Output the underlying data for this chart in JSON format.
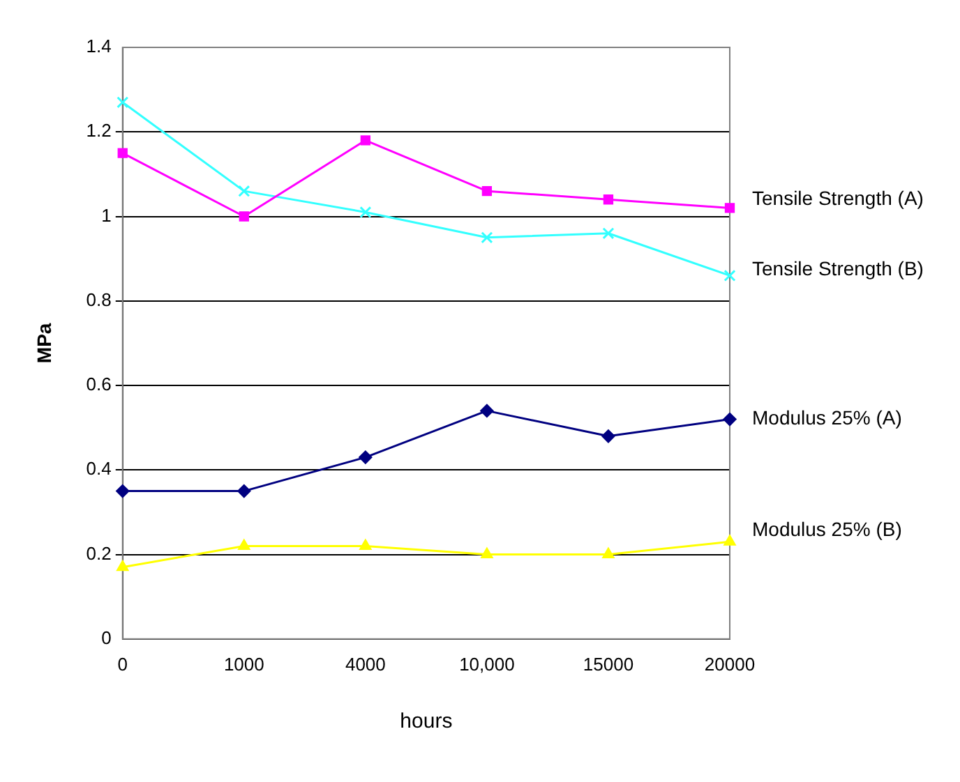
{
  "chart_data": {
    "type": "line",
    "xlabel": "hours",
    "ylabel": "MPa",
    "categories": [
      "0",
      "1000",
      "4000",
      "10,000",
      "15000",
      "20000"
    ],
    "ylim": [
      0,
      1.4
    ],
    "yticks": [
      0,
      0.2,
      0.4,
      0.6,
      0.8,
      1,
      1.2,
      1.4
    ],
    "grid": "y",
    "legend": false,
    "line_style": "solid",
    "series": [
      {
        "name": "Tensile Strength (A)",
        "color": "#ff00ff",
        "marker": "square",
        "values": [
          1.15,
          1.0,
          1.18,
          1.06,
          1.04,
          1.02
        ]
      },
      {
        "name": "Tensile Strength (B)",
        "color": "#33ffff",
        "marker": "cross",
        "values": [
          1.27,
          1.06,
          1.01,
          0.95,
          0.96,
          0.86
        ]
      },
      {
        "name": "Modulus 25% (A)",
        "color": "#000080",
        "marker": "diamond",
        "values": [
          0.35,
          0.35,
          0.43,
          0.54,
          0.48,
          0.52
        ]
      },
      {
        "name": "Modulus 25% (B)",
        "color": "#ffff00",
        "marker": "triangle",
        "values": [
          0.17,
          0.22,
          0.22,
          0.2,
          0.2,
          0.23
        ]
      }
    ]
  }
}
